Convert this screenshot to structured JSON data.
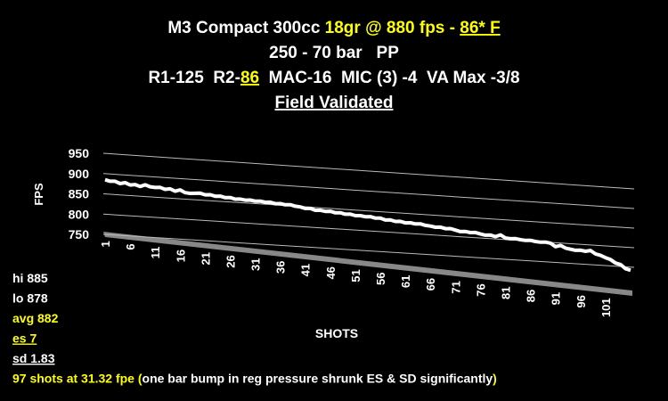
{
  "chart_data": {
    "type": "line",
    "title_lines": [
      [
        {
          "text": "M3 Compact 300cc "
        },
        {
          "text": "18gr @ 880 fps - ",
          "color": "#ffff00"
        },
        {
          "text": "86* F",
          "color": "#ffff00",
          "underline": true
        }
      ],
      [
        {
          "text": "250 - 70 bar   PP"
        }
      ],
      [
        {
          "text": "R1-125  R2-"
        },
        {
          "text": "86",
          "color": "#ffff00",
          "underline": true
        },
        {
          "text": "  MAC-16  MIC (3) -4  VA Max -3/8"
        }
      ],
      [
        {
          "text": "Field Validated",
          "underline": true
        }
      ]
    ],
    "y_label": "FPS",
    "x_label": "SHOTS",
    "annotations": [
      [
        {
          "text": "hi 885"
        }
      ],
      [
        {
          "text": "lo 878"
        }
      ],
      [
        {
          "text": "avg 882",
          "color": "#ffff00"
        }
      ],
      [
        {
          "text": "es 7",
          "color": "#ffff00",
          "underline": true
        }
      ],
      [
        {
          "text": "sd 1.83",
          "underline": true
        }
      ],
      [
        {
          "text": "97 shots at 31.32 fpe (",
          "color": "#ffff00"
        },
        {
          "text": "one bar bump in reg pressure shrunk ES & SD significantly"
        },
        {
          "text": ")",
          "color": "#ffff00"
        }
      ]
    ],
    "categories": [
      1,
      null,
      null,
      null,
      null,
      6,
      null,
      null,
      null,
      null,
      11,
      null,
      null,
      null,
      null,
      16,
      null,
      null,
      null,
      null,
      21,
      null,
      null,
      null,
      null,
      26,
      null,
      null,
      null,
      null,
      31,
      null,
      null,
      null,
      null,
      36,
      null,
      null,
      null,
      null,
      41,
      null,
      null,
      null,
      null,
      46,
      null,
      null,
      null,
      null,
      51,
      null,
      null,
      null,
      null,
      56,
      null,
      null,
      null,
      null,
      61,
      null,
      null,
      null,
      null,
      66,
      null,
      null,
      null,
      null,
      71,
      null,
      null,
      null,
      null,
      76,
      null,
      null,
      null,
      null,
      81,
      null,
      null,
      null,
      null,
      86,
      null,
      null,
      null,
      null,
      91,
      null,
      null,
      null,
      null,
      96,
      null,
      null,
      null,
      null,
      101,
      null,
      null,
      null,
      null,
      null
    ],
    "values": [
      885,
      882,
      883,
      878,
      881,
      876,
      878,
      874,
      879,
      875,
      874,
      875,
      871,
      873,
      868,
      872,
      866,
      865,
      866,
      867,
      864,
      865,
      862,
      863,
      860,
      861,
      858,
      859,
      857,
      858,
      856,
      857,
      855,
      856,
      853,
      854,
      852,
      853,
      850,
      849,
      846,
      847,
      843,
      844,
      842,
      843,
      840,
      841,
      838,
      839,
      836,
      837,
      835,
      836,
      833,
      834,
      830,
      831,
      828,
      829,
      826,
      827,
      825,
      826,
      823,
      822,
      820,
      821,
      818,
      819,
      816,
      813,
      814,
      812,
      813,
      810,
      808,
      809,
      806,
      811,
      804,
      803,
      804,
      802,
      801,
      802,
      800,
      799,
      800,
      798,
      790,
      794,
      788,
      786,
      784,
      785,
      783,
      786,
      778,
      775,
      770,
      766,
      758,
      755,
      745,
      742
    ],
    "color": "#ffffff",
    "ylim": [
      750,
      950
    ],
    "yticks": [
      750,
      800,
      850,
      900,
      950
    ],
    "grid": true
  }
}
